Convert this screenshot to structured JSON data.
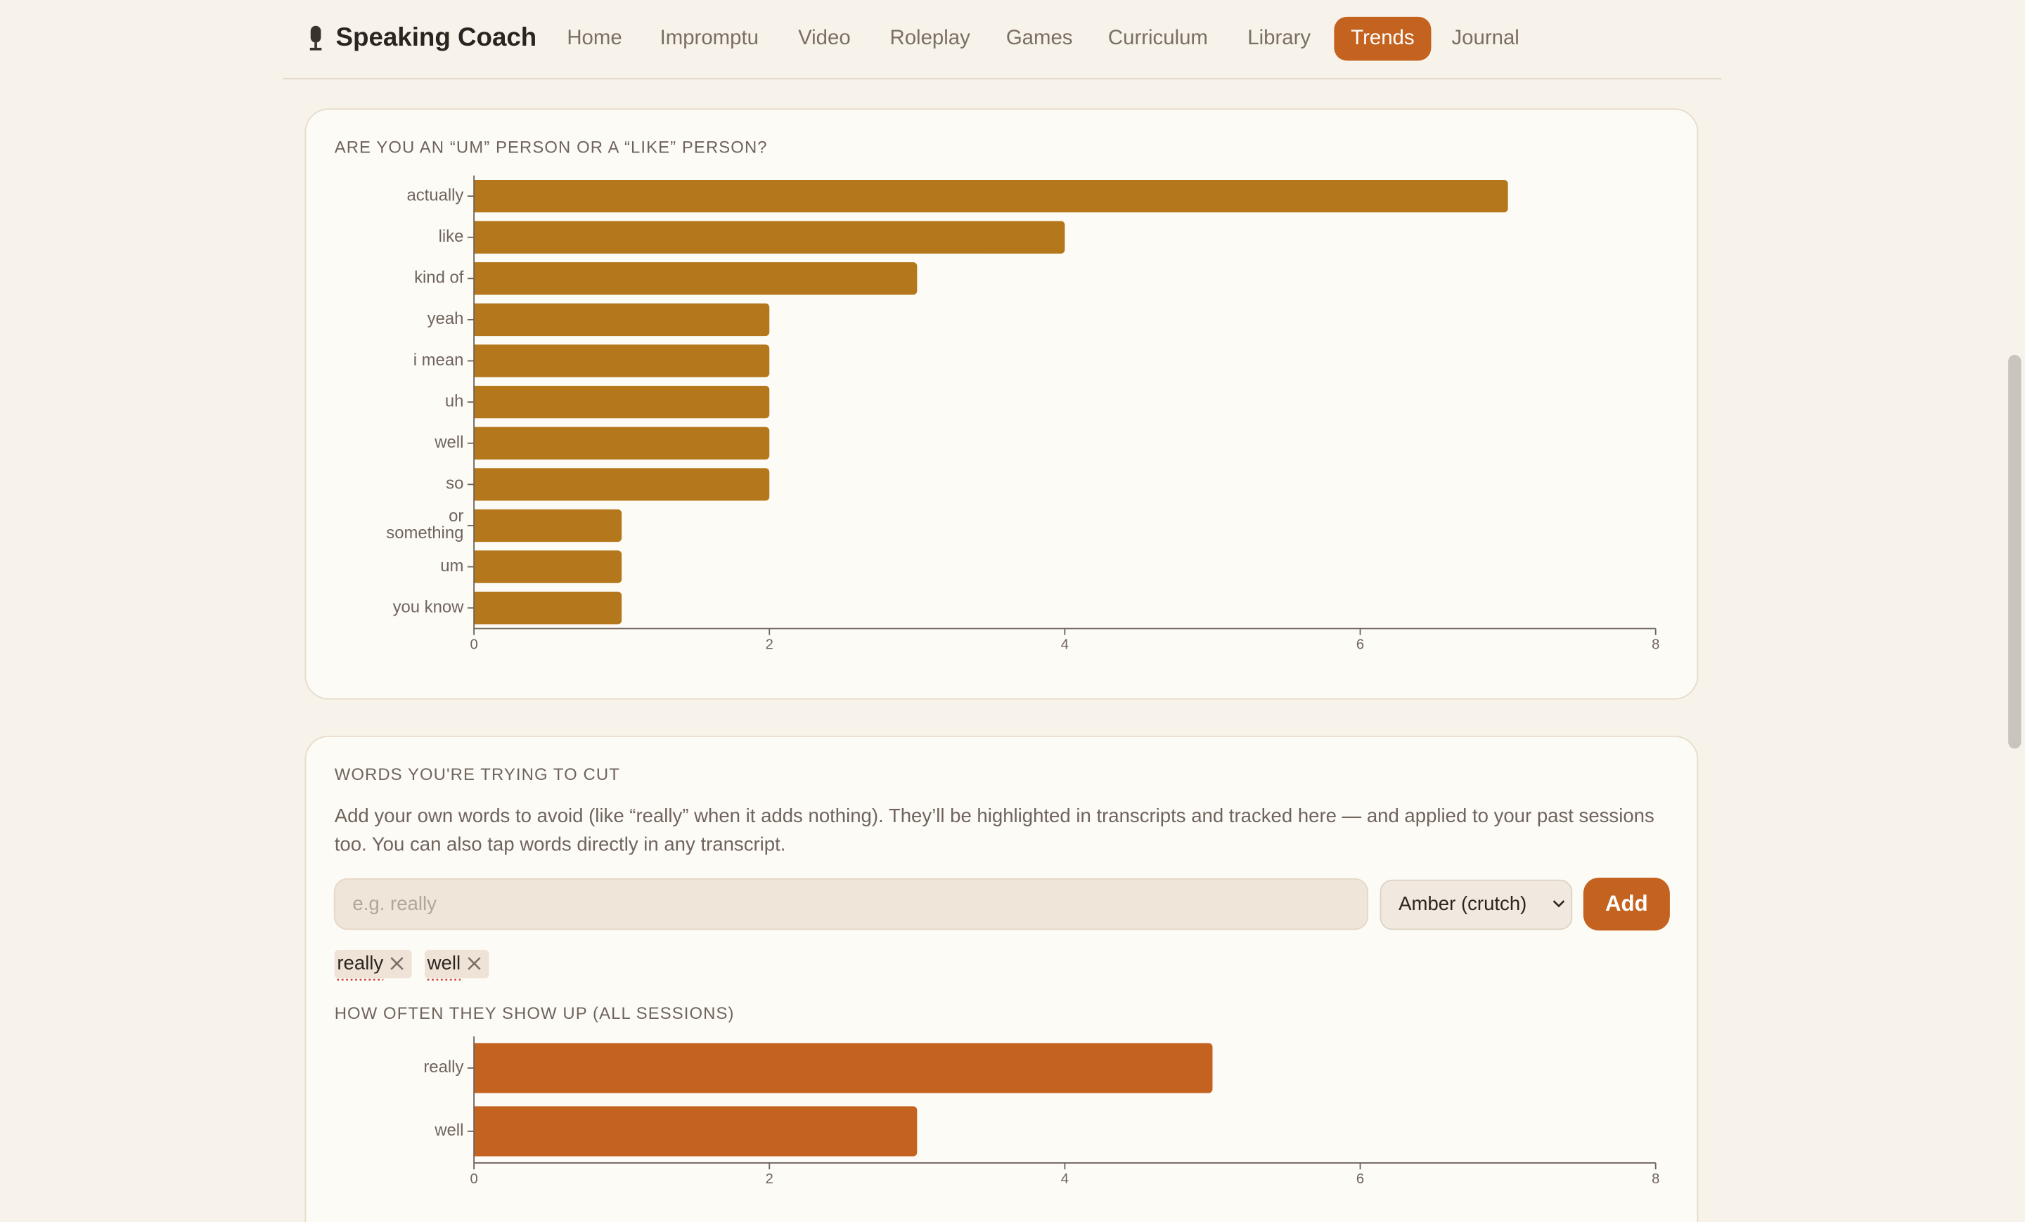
{
  "header": {
    "brand": "Speaking Coach",
    "nav": [
      "Home",
      "Impromptu",
      "Video",
      "Roleplay",
      "Games",
      "Curriculum",
      "Library",
      "Trends",
      "Journal"
    ],
    "active": "Trends"
  },
  "cut_card": {
    "heading": "WORDS YOU'RE TRYING TO CUT",
    "description": "Add your own words to avoid (like “really” when it adds nothing). They’ll be highlighted in transcripts and tracked here — and applied to your past sessions too. You can also tap words directly in any transcript.",
    "placeholder": "e.g. really",
    "select": "Amber (crutch)",
    "button": "Add",
    "chips": [
      "really",
      "well"
    ]
  },
  "chart_data": [
    {
      "type": "bar",
      "orientation": "horizontal",
      "title": "ARE YOU AN “UM” PERSON OR A “LIKE” PERSON?",
      "categories": [
        "actually",
        "like",
        "kind of",
        "yeah",
        "i mean",
        "uh",
        "well",
        "so",
        "or something",
        "um",
        "you know"
      ],
      "values": [
        7,
        4,
        3,
        2,
        2,
        2,
        2,
        2,
        1,
        1,
        1
      ],
      "color": "#b5771b",
      "xlim": [
        0,
        8
      ],
      "xticks": [
        0,
        2,
        4,
        6,
        8
      ]
    },
    {
      "type": "bar",
      "orientation": "horizontal",
      "title": "HOW OFTEN THEY SHOW UP (ALL SESSIONS)",
      "categories": [
        "really",
        "well"
      ],
      "values": [
        5,
        3
      ],
      "color": "#c4621f",
      "xlim": [
        0,
        8
      ],
      "xticks": [
        0,
        2,
        4,
        6,
        8
      ]
    }
  ]
}
